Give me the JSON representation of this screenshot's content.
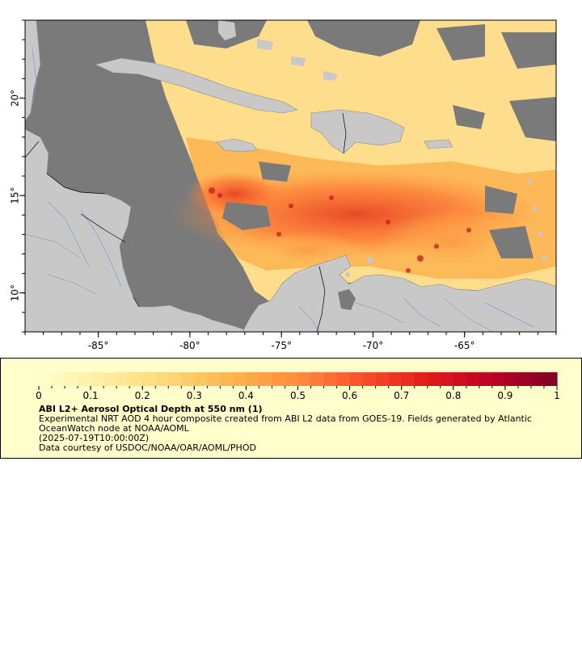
{
  "map": {
    "lon_ticks": [
      -85,
      -80,
      -75,
      -70,
      -65
    ],
    "lon_tick_labels": [
      "-85°",
      "-80°",
      "-75°",
      "-70°",
      "-65°"
    ],
    "lat_ticks": [
      10,
      15,
      20
    ],
    "lat_tick_labels": [
      "10°",
      "15°",
      "20°"
    ],
    "lon_range": [
      -89.0,
      -60.0
    ],
    "lat_range": [
      8.0,
      24.0
    ],
    "colors": {
      "land": "#c8c8c8",
      "no_data_ocean": "#7a7a7a",
      "border": "#000000",
      "river": "#6f9fd8"
    }
  },
  "colorbar": {
    "min": 0,
    "max": 1,
    "tick_values": [
      0,
      0.1,
      0.2,
      0.3,
      0.4,
      0.5,
      0.6,
      0.7,
      0.8,
      0.9,
      1
    ],
    "tick_labels": [
      "0",
      "0.1",
      "0.2",
      "0.3",
      "0.4",
      "0.5",
      "0.6",
      "0.7",
      "0.8",
      "0.9",
      "1"
    ],
    "colors": [
      "#ffffcc",
      "#ffeda0",
      "#fed976",
      "#feb24c",
      "#fd8d3c",
      "#fc4e2a",
      "#e31a1c",
      "#bd0026",
      "#800026"
    ]
  },
  "legend": {
    "title": "ABI L2+ Aerosol Optical Depth at 550 nm (1)",
    "description": "Experimental NRT AOD 4 hour composite created from ABI L2 data from GOES-19. Fields generated by Atlantic OceanWatch node at NOAA/AOML",
    "timestamp": "(2025-07-19T10:00:00Z)",
    "credit": "Data courtesy of USDOC/NOAA/OAR/AOML/PHOD"
  }
}
